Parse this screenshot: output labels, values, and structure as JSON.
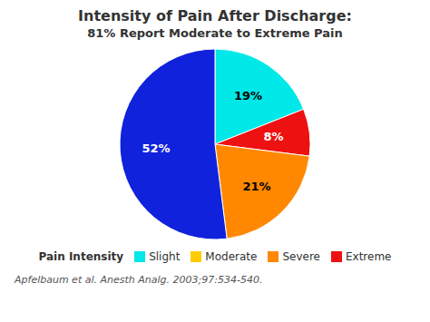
{
  "chart_data": {
    "type": "pie",
    "title": "Intensity of Pain After Discharge:",
    "subtitle": "81% Report Moderate to Extreme Pain",
    "values": [
      19,
      8,
      21,
      52
    ],
    "value_labels": [
      "19%",
      "8%",
      "21%",
      "52%"
    ],
    "colors": [
      "#00e8e8",
      "#ee1111",
      "#ff8800",
      "#1122dd"
    ],
    "data_labels": true,
    "legend": "bottom",
    "legend_title": "Pain Intensity",
    "legend_items": [
      {
        "name": "Slight",
        "color": "#00e8e8"
      },
      {
        "name": "Moderate",
        "color": "#ffcc00"
      },
      {
        "name": "Severe",
        "color": "#ff8800"
      },
      {
        "name": "Extreme",
        "color": "#ee1111"
      }
    ],
    "annotations": [
      "Apfelbaum et al. Anesth Analg. 2003;97:534-540."
    ]
  }
}
